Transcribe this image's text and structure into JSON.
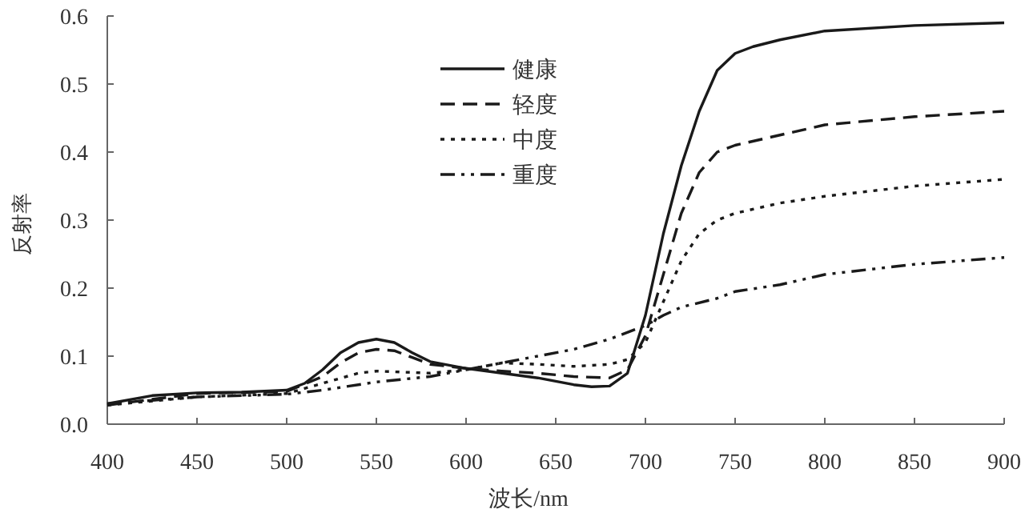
{
  "chart_data": {
    "type": "line",
    "xlabel": "波长/nm",
    "ylabel": "反射率",
    "xlim": [
      400,
      900
    ],
    "ylim": [
      0,
      0.6
    ],
    "xticks": [
      400,
      450,
      500,
      550,
      600,
      650,
      700,
      750,
      800,
      850,
      900
    ],
    "yticks": [
      {
        "value": 0,
        "label": "0.0"
      },
      0.1,
      0.2,
      0.3,
      0.4,
      0.5,
      0.6
    ],
    "grid": false,
    "legend": "top left",
    "marker": "none",
    "series": [
      {
        "name": "健康",
        "color": "#1a1a1a",
        "line_style": "solid",
        "x": [
          400,
          425,
          450,
          475,
          500,
          510,
          520,
          530,
          540,
          550,
          560,
          570,
          580,
          600,
          620,
          640,
          660,
          670,
          680,
          690,
          700,
          710,
          720,
          730,
          740,
          750,
          760,
          775,
          800,
          850,
          900
        ],
        "values": [
          0.03,
          0.042,
          0.046,
          0.047,
          0.05,
          0.06,
          0.08,
          0.105,
          0.12,
          0.125,
          0.12,
          0.105,
          0.092,
          0.082,
          0.075,
          0.068,
          0.058,
          0.055,
          0.056,
          0.075,
          0.16,
          0.28,
          0.38,
          0.46,
          0.52,
          0.545,
          0.555,
          0.565,
          0.578,
          0.586,
          0.59
        ]
      },
      {
        "name": "轻度",
        "color": "#1a1a1a",
        "line_style": "dashed",
        "x": [
          400,
          450,
          500,
          520,
          530,
          540,
          550,
          560,
          570,
          580,
          600,
          620,
          640,
          660,
          680,
          690,
          700,
          710,
          720,
          730,
          740,
          750,
          775,
          800,
          850,
          900
        ],
        "values": [
          0.028,
          0.045,
          0.048,
          0.07,
          0.09,
          0.105,
          0.11,
          0.108,
          0.098,
          0.088,
          0.082,
          0.078,
          0.075,
          0.07,
          0.068,
          0.08,
          0.13,
          0.22,
          0.31,
          0.37,
          0.4,
          0.41,
          0.425,
          0.44,
          0.452,
          0.46
        ]
      },
      {
        "name": "中度",
        "color": "#1a1a1a",
        "line_style": "dotted",
        "x": [
          400,
          450,
          500,
          520,
          540,
          550,
          560,
          580,
          600,
          620,
          640,
          660,
          680,
          690,
          700,
          710,
          720,
          730,
          740,
          750,
          775,
          800,
          850,
          900
        ],
        "values": [
          0.028,
          0.04,
          0.045,
          0.06,
          0.075,
          0.078,
          0.077,
          0.075,
          0.08,
          0.09,
          0.088,
          0.085,
          0.088,
          0.095,
          0.12,
          0.18,
          0.24,
          0.28,
          0.3,
          0.31,
          0.325,
          0.335,
          0.35,
          0.36
        ]
      },
      {
        "name": "重度",
        "color": "#1a1a1a",
        "line_style": "dashdot",
        "x": [
          400,
          450,
          500,
          520,
          550,
          580,
          600,
          620,
          640,
          660,
          680,
          700,
          710,
          720,
          740,
          750,
          775,
          800,
          850,
          900
        ],
        "values": [
          0.03,
          0.04,
          0.044,
          0.05,
          0.062,
          0.07,
          0.08,
          0.09,
          0.1,
          0.11,
          0.125,
          0.145,
          0.16,
          0.172,
          0.185,
          0.195,
          0.205,
          0.22,
          0.235,
          0.245
        ]
      }
    ]
  }
}
